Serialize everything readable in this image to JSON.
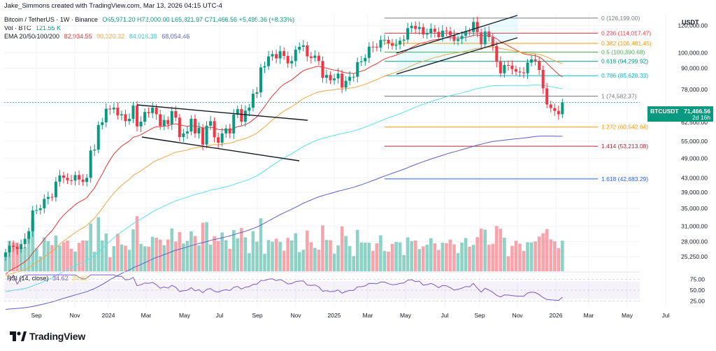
{
  "header": {
    "creator": "Jake_Simmons created with TradingView.com, Mar 13, 2026 04:15 UTC-4",
    "symbol": "Bitcoin / TetherUS · 1W · Binance",
    "ohlc": "O65,971.20 H72,000.00 L65,821.97 C71,466.56 +5,495.36 (+8.33%)",
    "vol_label": "Vol · BTC",
    "vol_value": "121.55 K",
    "ema_label": "EMA 20/50/100/200",
    "ema_values": [
      "82,934.55",
      "90,320.32",
      "84,016.38",
      "68,054.46"
    ]
  },
  "colors": {
    "up": "#089981",
    "down": "#f23645",
    "ema20": "#e53935",
    "ema50": "#f5a742",
    "ema100": "#5ce1f2",
    "ema200": "#5b5fc7",
    "rsi": "#7e57c2"
  },
  "axis_unit": "USDT",
  "price_tag": {
    "symbol": "BTCUSDT",
    "price": "71,466.56",
    "countdown": "2d 16h"
  },
  "rsi": {
    "label": "RSI (14, close)",
    "v1": "34.62",
    "v2": "34.82"
  },
  "brand": "TradingView",
  "chart_data": {
    "type": "candlestick",
    "title": "Bitcoin / TetherUS · 1W · Binance",
    "ylabel": "USDT",
    "y_scale": "log",
    "y_ticks": [
      "120,000.00",
      "100,000.00",
      "90,000.00",
      "78,000.00",
      "62,500.00",
      "55,000.00",
      "49,000.00",
      "43,000.00",
      "39,000.00",
      "35,000.00",
      "31,000.00",
      "28,000.00",
      "25,250.00"
    ],
    "y_tick_values": [
      120000,
      100000,
      90000,
      78000,
      62500,
      55000,
      49000,
      43000,
      39000,
      35000,
      31000,
      28000,
      25250
    ],
    "x_ticks": [
      "Sep",
      "Nov",
      "2024",
      "Mar",
      "May",
      "Jul",
      "Sep",
      "Nov",
      "2025",
      "Mar",
      "May",
      "Jul",
      "Sep",
      "Nov",
      "2026",
      "Mar",
      "May",
      "Jul"
    ],
    "x_tick_dates": [
      "2023-09-01",
      "2023-11-01",
      "2024-01-01",
      "2024-03-01",
      "2024-05-01",
      "2024-07-01",
      "2024-09-01",
      "2024-11-01",
      "2025-01-01",
      "2025-03-01",
      "2025-05-01",
      "2025-07-01",
      "2025-09-01",
      "2025-11-01",
      "2026-01-01",
      "2026-03-01",
      "2026-05-01",
      "2026-07-01"
    ],
    "fib_levels": [
      {
        "label": "0 (126,199.00)",
        "price": 126199,
        "color": "#787b86"
      },
      {
        "label": "0.236 (114,017.47)",
        "price": 114017.47,
        "color": "#f23645"
      },
      {
        "label": "0.382 (106,481.45)",
        "price": 106481.45,
        "color": "#ff9800"
      },
      {
        "label": "0.5 (100,390.68)",
        "price": 100390.68,
        "color": "#4caf50"
      },
      {
        "label": "0.618 (94,299.92)",
        "price": 94299.92,
        "color": "#089981"
      },
      {
        "label": "0.786 (85,628.33)",
        "price": 85628.33,
        "color": "#00bcd4"
      },
      {
        "label": "1 (74,582.37)",
        "price": 74582.37,
        "color": "#787b86"
      },
      {
        "label": "1.272 (60,542.64)",
        "price": 60542.64,
        "color": "#ff9800"
      },
      {
        "label": "1.414 (53,213.08)",
        "price": 53213.08,
        "color": "#b22833"
      },
      {
        "label": "1.618 (42,683.29)",
        "price": 42683.29,
        "color": "#2962ff"
      }
    ],
    "rsi_ticks": [
      "75.00",
      "50.00",
      "25.00"
    ],
    "rsi_tick_values": [
      75,
      50,
      25
    ],
    "closes": [
      26000,
      27200,
      27000,
      26600,
      27500,
      28500,
      30000,
      34500,
      34600,
      35000,
      37300,
      37800,
      37700,
      41900,
      43700,
      43000,
      42300,
      42200,
      43800,
      42500,
      41800,
      43000,
      51700,
      52000,
      61400,
      62500,
      68500,
      68200,
      69000,
      65500,
      66000,
      63000,
      64000,
      70000,
      60800,
      62800,
      67000,
      66500,
      69000,
      66000,
      61000,
      63500,
      61700,
      67400,
      64500,
      56600,
      58000,
      58800,
      64000,
      58000,
      60300,
      53800,
      61100,
      63000,
      56500,
      54500,
      58000,
      60000,
      58000,
      65900,
      68300,
      62800,
      67600,
      69000,
      75800,
      76500,
      90500,
      91300,
      97500,
      99000,
      96200,
      101000,
      97800,
      93000,
      94500,
      102000,
      104000,
      105000,
      97500,
      96500,
      98000,
      94500,
      84400,
      86000,
      83000,
      84000,
      86800,
      79000,
      82700,
      85000,
      85000,
      93800,
      94300,
      96500,
      104100,
      104000,
      103500,
      108900,
      109000,
      106500,
      104800,
      105600,
      108400,
      109200,
      117900,
      119800,
      117300,
      118800,
      113000,
      114200,
      117500,
      115000,
      111000,
      116000,
      115500,
      112500,
      108200,
      109600,
      112000,
      115400,
      114900,
      123000,
      114700,
      105800,
      115300,
      111000,
      104500,
      94000,
      87000,
      92000,
      91600,
      89500,
      88000,
      87500,
      87000,
      93500,
      95500,
      94500,
      89000,
      78600,
      70500,
      68800,
      67500,
      66000,
      71466
    ]
  }
}
